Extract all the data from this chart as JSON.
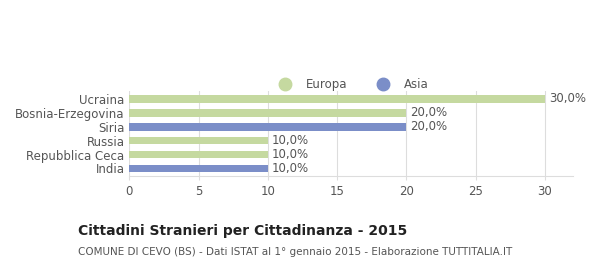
{
  "categories": [
    "Ucraina",
    "Bosnia-Erzegovina",
    "Siria",
    "Russia",
    "Repubblica Ceca",
    "India"
  ],
  "values": [
    30.0,
    20.0,
    20.0,
    10.0,
    10.0,
    10.0
  ],
  "colors": [
    "#c5d9a0",
    "#c5d9a0",
    "#7b8ec8",
    "#c5d9a0",
    "#c5d9a0",
    "#7b8ec8"
  ],
  "bar_labels": [
    "30,0%",
    "20,0%",
    "20,0%",
    "10,0%",
    "10,0%",
    "10,0%"
  ],
  "xlim": [
    0,
    32
  ],
  "xticks": [
    0,
    5,
    10,
    15,
    20,
    25,
    30
  ],
  "legend_europa_color": "#c5d9a0",
  "legend_asia_color": "#7b8ec8",
  "legend_europa_label": "Europa",
  "legend_asia_label": "Asia",
  "title": "Cittadini Stranieri per Cittadinanza - 2015",
  "subtitle": "COMUNE DI CEVO (BS) - Dati ISTAT al 1° gennaio 2015 - Elaborazione TUTTITALIA.IT",
  "background_color": "#ffffff",
  "grid_color": "#dddddd",
  "bar_height": 0.55,
  "label_fontsize": 8.5,
  "tick_fontsize": 8.5,
  "title_fontsize": 10,
  "subtitle_fontsize": 7.5,
  "text_color": "#555555",
  "title_color": "#222222"
}
